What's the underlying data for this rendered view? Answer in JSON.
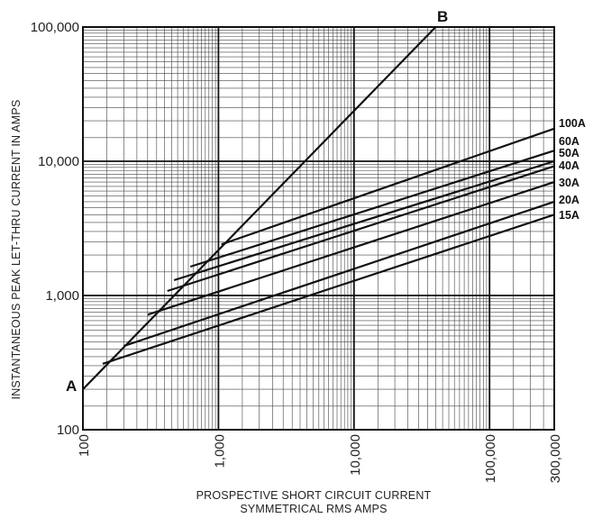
{
  "chart_data": {
    "type": "line",
    "scale": {
      "x": "log",
      "y": "log"
    },
    "grid": true,
    "xlim": [
      100,
      300000
    ],
    "ylim": [
      100,
      100000
    ],
    "x_ticks": [
      {
        "value": 100,
        "label": "100"
      },
      {
        "value": 1000,
        "label": "1,000"
      },
      {
        "value": 10000,
        "label": "10,000"
      },
      {
        "value": 100000,
        "label": "100,000"
      },
      {
        "value": 300000,
        "label": "300,000"
      }
    ],
    "y_ticks": [
      {
        "value": 100,
        "label": "100"
      },
      {
        "value": 1000,
        "label": "1,000"
      },
      {
        "value": 10000,
        "label": "10,000"
      },
      {
        "value": 100000,
        "label": "100,000"
      }
    ],
    "xlabel_lines": [
      "PROSPECTIVE SHORT CIRCUIT CURRENT",
      "SYMMETRICAL RMS AMPS"
    ],
    "ylabel": "INSTANTANEOUS PEAK LET-THRU CURRENT IN AMPS",
    "line_ab": {
      "start_label": "A",
      "end_label": "B",
      "points": [
        [
          100,
          200
        ],
        [
          40000,
          100000
        ]
      ]
    },
    "series": [
      {
        "name": "100A",
        "points": [
          [
            1050,
            2400
          ],
          [
            300000,
            17500
          ]
        ]
      },
      {
        "name": "60A",
        "points": [
          [
            620,
            1640
          ],
          [
            300000,
            12000
          ]
        ]
      },
      {
        "name": "50A",
        "points": [
          [
            470,
            1300
          ],
          [
            300000,
            10000
          ]
        ]
      },
      {
        "name": "40A",
        "points": [
          [
            420,
            1080
          ],
          [
            300000,
            9200
          ]
        ]
      },
      {
        "name": "30A",
        "points": [
          [
            300,
            720
          ],
          [
            300000,
            7000
          ]
        ]
      },
      {
        "name": "20A",
        "points": [
          [
            200,
            420
          ],
          [
            300000,
            5000
          ]
        ]
      },
      {
        "name": "15A",
        "points": [
          [
            140,
            310
          ],
          [
            300000,
            4000
          ]
        ]
      }
    ]
  }
}
